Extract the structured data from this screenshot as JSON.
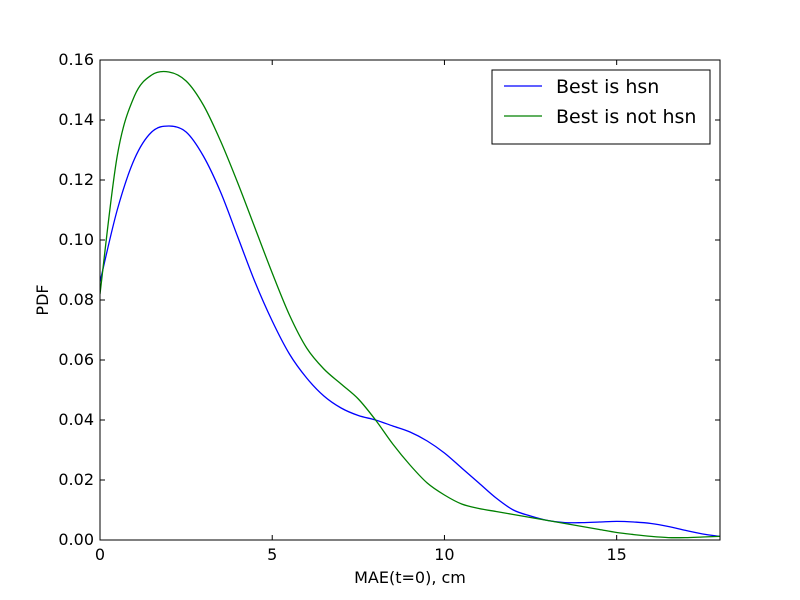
{
  "chart_data": {
    "type": "line",
    "title": "",
    "xlabel": "MAE(t=0), cm",
    "ylabel": "PDF",
    "xlim": [
      0,
      18
    ],
    "ylim": [
      0,
      0.16
    ],
    "xticks": [
      0,
      5,
      10,
      15
    ],
    "xtick_labels": [
      "0",
      "5",
      "10",
      "15"
    ],
    "yticks": [
      0,
      0.02,
      0.04,
      0.06,
      0.08,
      0.1,
      0.12,
      0.14,
      0.16
    ],
    "ytick_labels": [
      "0.00",
      "0.02",
      "0.04",
      "0.06",
      "0.08",
      "0.10",
      "0.12",
      "0.14",
      "0.16"
    ],
    "grid": false,
    "legend_position": "top-right",
    "series": [
      {
        "name": "Best is hsn",
        "color": "#0000ff",
        "x": [
          0,
          0.5,
          1,
          1.5,
          2,
          2.5,
          3,
          3.5,
          4,
          4.5,
          5,
          5.5,
          6,
          6.5,
          7,
          7.5,
          8,
          8.5,
          9,
          9.5,
          10,
          10.5,
          11,
          11.5,
          12,
          12.5,
          13,
          13.5,
          14,
          14.5,
          15,
          15.5,
          16,
          16.5,
          17,
          17.5,
          18
        ],
        "y": [
          0.086,
          0.11,
          0.127,
          0.136,
          0.138,
          0.136,
          0.128,
          0.116,
          0.101,
          0.086,
          0.073,
          0.062,
          0.054,
          0.048,
          0.044,
          0.0415,
          0.04,
          0.038,
          0.036,
          0.033,
          0.029,
          0.024,
          0.019,
          0.014,
          0.01,
          0.008,
          0.0065,
          0.0058,
          0.0058,
          0.006,
          0.0062,
          0.006,
          0.0055,
          0.0045,
          0.0032,
          0.002,
          0.0012
        ]
      },
      {
        "name": "Best is not hsn",
        "color": "#008000",
        "x": [
          0,
          0.5,
          1,
          1.5,
          2,
          2.5,
          3,
          3.5,
          4,
          4.5,
          5,
          5.5,
          6,
          6.5,
          7,
          7.5,
          8,
          8.5,
          9,
          9.5,
          10,
          10.5,
          11,
          11.5,
          12,
          12.5,
          13,
          13.5,
          14,
          14.5,
          15,
          15.5,
          16,
          16.5,
          17,
          17.5,
          18
        ],
        "y": [
          0.082,
          0.128,
          0.148,
          0.155,
          0.156,
          0.153,
          0.145,
          0.133,
          0.119,
          0.104,
          0.089,
          0.075,
          0.064,
          0.057,
          0.052,
          0.047,
          0.04,
          0.032,
          0.025,
          0.019,
          0.015,
          0.012,
          0.0105,
          0.0095,
          0.0085,
          0.0075,
          0.0065,
          0.0055,
          0.0045,
          0.0035,
          0.0025,
          0.0018,
          0.0012,
          0.0008,
          0.0008,
          0.001,
          0.0012
        ]
      }
    ]
  }
}
